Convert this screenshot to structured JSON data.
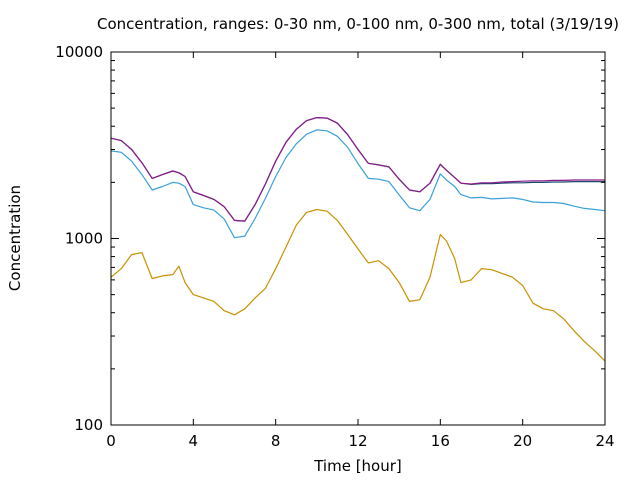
{
  "chart_data": {
    "type": "line",
    "title": "Concentration, ranges: 0-30 nm, 0-100 nm, 0-300 nm, total (3/19/19)",
    "xlabel": "Time [hour]",
    "ylabel": "Concentration",
    "xlim": [
      0,
      24
    ],
    "ylim": [
      100,
      10000
    ],
    "yscale": "log",
    "grid": false,
    "xticks": [
      "0",
      "4",
      "8",
      "12",
      "16",
      "20",
      "24"
    ],
    "yticks": [
      "100",
      "1000",
      "10000"
    ],
    "x": [
      0,
      0.5,
      1,
      1.5,
      2,
      2.5,
      3,
      3.3,
      3.6,
      4,
      4.5,
      5,
      5.5,
      6,
      6.5,
      7,
      7.5,
      8,
      8.5,
      9,
      9.5,
      10,
      10.5,
      11,
      11.5,
      12,
      12.5,
      13,
      13.5,
      14,
      14.5,
      15,
      15.5,
      16,
      16.3,
      16.7,
      17,
      17.5,
      18,
      18.5,
      19,
      19.5,
      20,
      20.5,
      21,
      21.5,
      22,
      22.5,
      23,
      23.5,
      24
    ],
    "series": [
      {
        "color": "#c99100",
        "values": [
          620,
          690,
          820,
          840,
          610,
          630,
          640,
          710,
          580,
          500,
          480,
          460,
          410,
          390,
          420,
          480,
          540,
          690,
          900,
          1180,
          1380,
          1430,
          1400,
          1250,
          1050,
          880,
          740,
          760,
          690,
          580,
          460,
          470,
          620,
          1050,
          970,
          780,
          580,
          600,
          690,
          680,
          650,
          620,
          560,
          450,
          420,
          410,
          370,
          320,
          280,
          250,
          220
        ]
      },
      {
        "color": "#3aa0d8",
        "values": [
          2950,
          2900,
          2600,
          2200,
          1820,
          1900,
          2000,
          1980,
          1900,
          1520,
          1460,
          1420,
          1270,
          1010,
          1030,
          1280,
          1640,
          2150,
          2720,
          3220,
          3620,
          3820,
          3780,
          3530,
          3080,
          2520,
          2100,
          2080,
          2020,
          1710,
          1460,
          1410,
          1620,
          2220,
          2060,
          1900,
          1720,
          1650,
          1660,
          1630,
          1640,
          1650,
          1620,
          1570,
          1560,
          1560,
          1540,
          1490,
          1450,
          1430,
          1410
        ]
      },
      {
        "color": "#1a4a6e",
        "values": [
          3450,
          3350,
          3000,
          2550,
          2100,
          2200,
          2300,
          2250,
          2150,
          1780,
          1700,
          1620,
          1480,
          1250,
          1240,
          1520,
          1960,
          2600,
          3280,
          3850,
          4280,
          4450,
          4420,
          4150,
          3600,
          3000,
          2530,
          2480,
          2420,
          2080,
          1820,
          1780,
          1980,
          2500,
          2320,
          2120,
          1980,
          1950,
          1970,
          1970,
          1980,
          1990,
          1990,
          2000,
          2000,
          2010,
          2010,
          2020,
          2020,
          2020,
          2020
        ]
      },
      {
        "color": "#8b1a8b",
        "values": [
          3450,
          3350,
          3000,
          2550,
          2100,
          2200,
          2300,
          2250,
          2150,
          1780,
          1700,
          1620,
          1480,
          1250,
          1240,
          1520,
          1960,
          2600,
          3280,
          3850,
          4280,
          4450,
          4420,
          4150,
          3600,
          3000,
          2530,
          2480,
          2420,
          2080,
          1820,
          1780,
          1980,
          2500,
          2320,
          2120,
          1980,
          1960,
          1990,
          1990,
          2010,
          2020,
          2030,
          2040,
          2040,
          2050,
          2050,
          2060,
          2060,
          2060,
          2060
        ]
      }
    ]
  }
}
